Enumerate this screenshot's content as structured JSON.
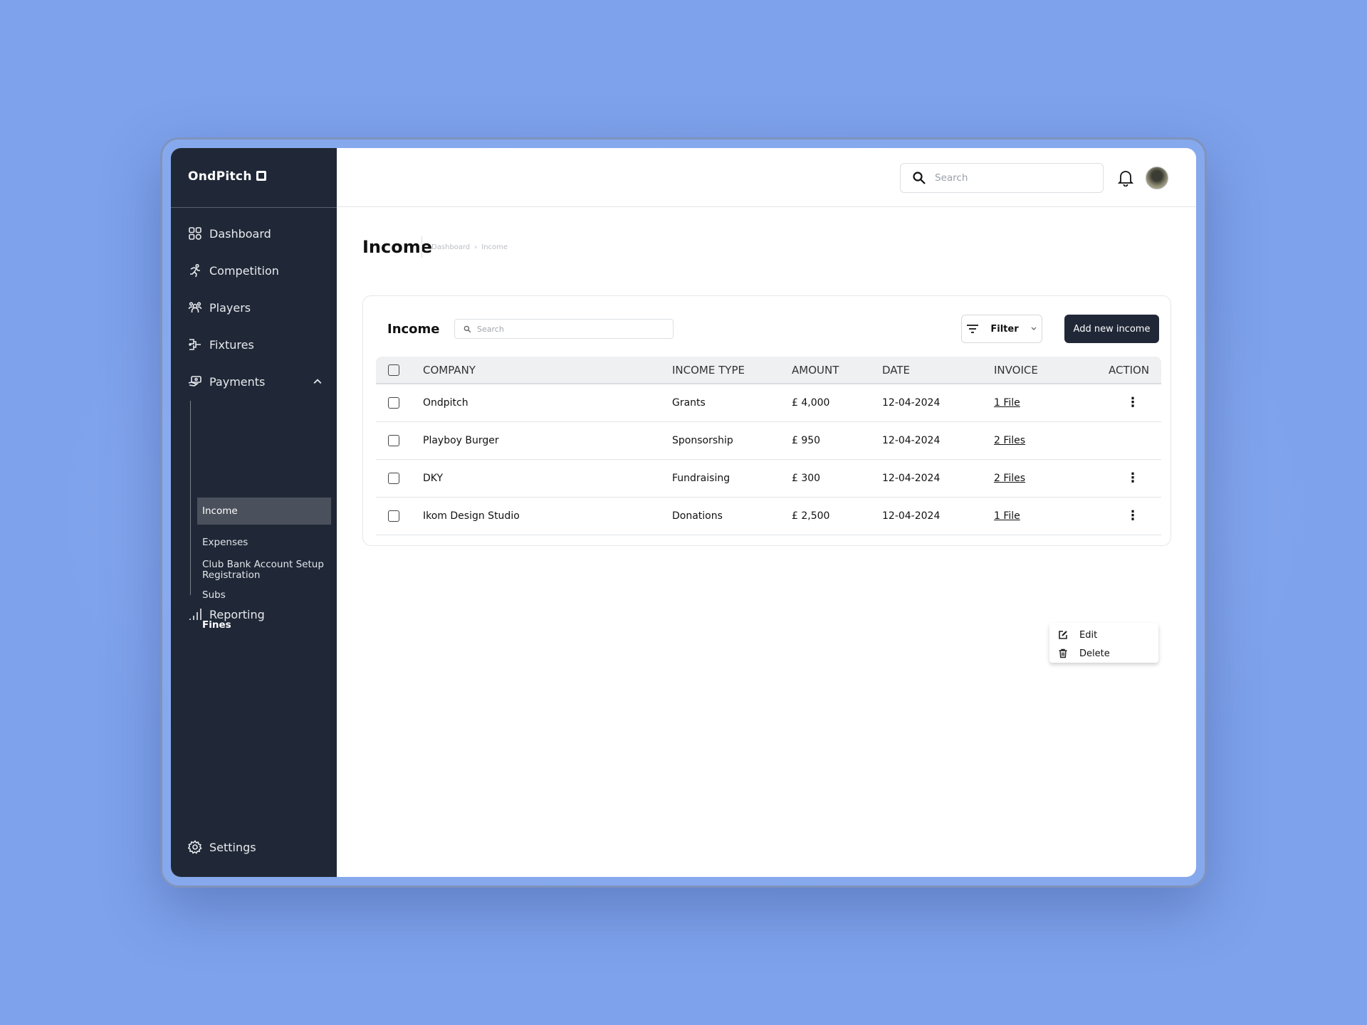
{
  "app": {
    "logo": "OndPitch",
    "logo_mark": "ol"
  },
  "sidebar": {
    "items": [
      {
        "label": "Dashboard",
        "icon": "grid-icon"
      },
      {
        "label": "Competition",
        "icon": "running-icon"
      },
      {
        "label": "Players",
        "icon": "people-icon"
      },
      {
        "label": "Fixtures",
        "icon": "bracket-icon"
      },
      {
        "label": "Payments",
        "icon": "payment-hand-icon"
      }
    ],
    "payments_sub": [
      "Club Bank Account Setup",
      "Subs",
      "Fines",
      "Income",
      "Expenses",
      "Registration"
    ],
    "active_sub": "Income",
    "reporting": "Reporting",
    "settings": "Settings"
  },
  "header": {
    "search_placeholder": "Search"
  },
  "page": {
    "title": "Income",
    "breadcrumb": [
      "Dashboard",
      "Income"
    ]
  },
  "card": {
    "title": "Income",
    "search_placeholder": "Search",
    "filter_label": "Filter",
    "add_label": "Add new income",
    "columns": [
      "COMPANY",
      "INCOME TYPE",
      "AMOUNT",
      "DATE",
      "INVOICE",
      "ACTION"
    ],
    "rows": [
      {
        "company": "Ondpitch",
        "type": "Grants",
        "amount": "£ 4,000",
        "date": "12-04-2024",
        "invoice": "1 File"
      },
      {
        "company": "Playboy Burger",
        "type": "Sponsorship",
        "amount": "£ 950",
        "date": "12-04-2024",
        "invoice": "2 Files"
      },
      {
        "company": "DKY",
        "type": "Fundraising",
        "amount": "£ 300",
        "date": "12-04-2024",
        "invoice": "2 Files"
      },
      {
        "company": "Ikom Design Studio",
        "type": "Donations",
        "amount": "£ 2,500",
        "date": "12-04-2024",
        "invoice": "1 File"
      }
    ],
    "menu": {
      "edit": "Edit",
      "delete": "Delete"
    }
  },
  "colors": {
    "sidebar": "#202837",
    "accent": "#202837",
    "background": "#8aaef2"
  }
}
